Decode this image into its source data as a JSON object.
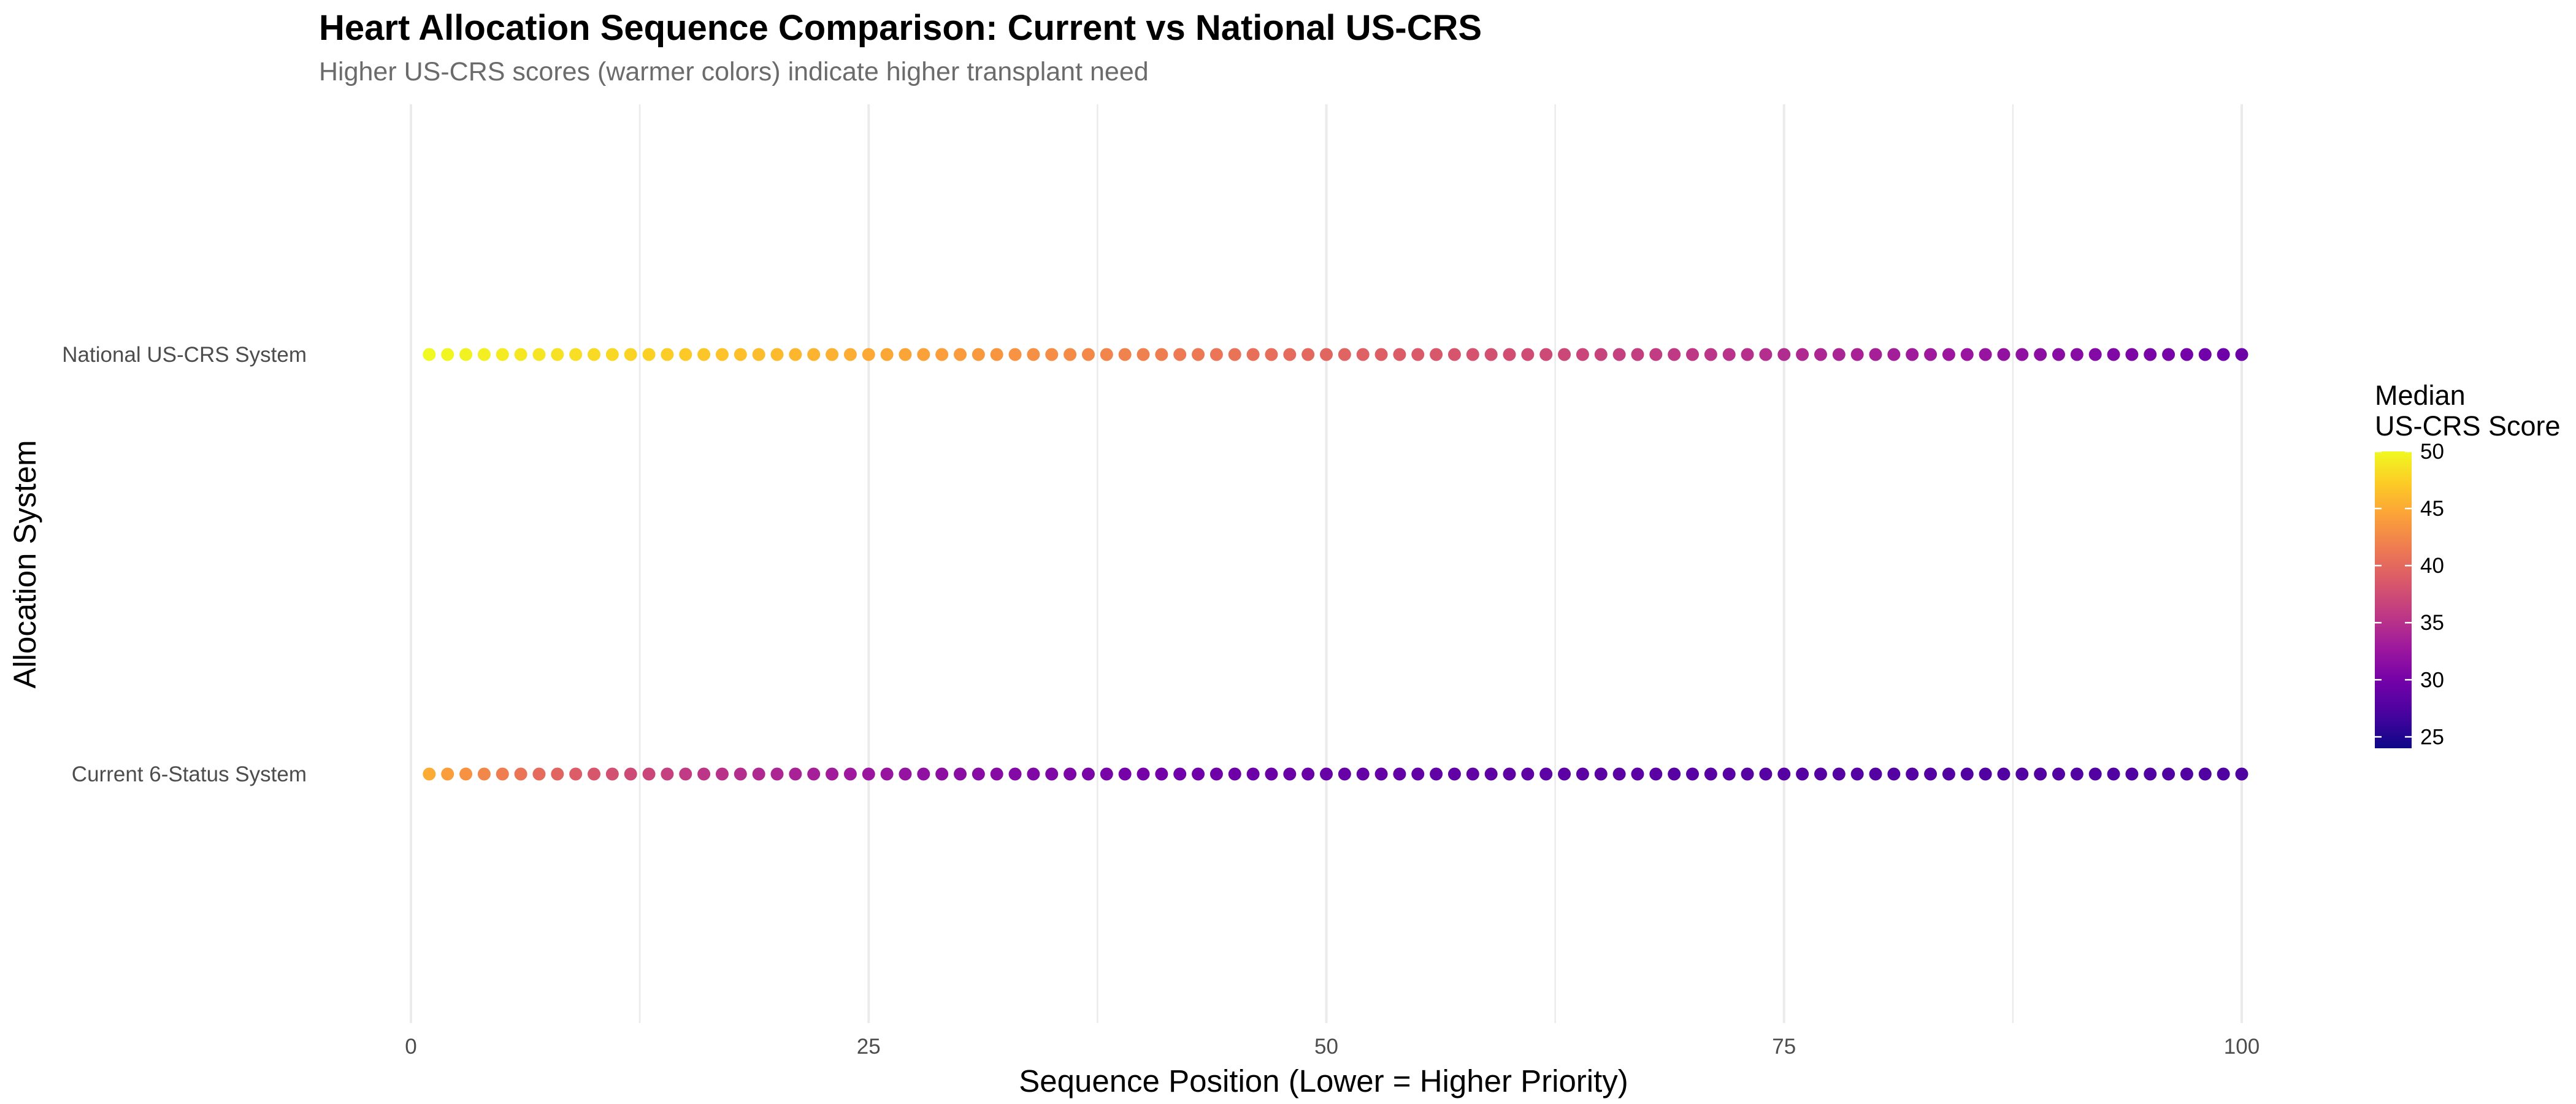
{
  "chart_data": {
    "type": "scatter",
    "title": "Heart Allocation Sequence Comparison: Current vs National US-CRS",
    "subtitle": "Higher US-CRS scores (warmer colors) indicate higher transplant need",
    "xlabel": "Sequence Position (Lower = Higher Priority)",
    "ylabel": "Allocation System",
    "xlim": [
      0,
      100
    ],
    "x_ticks": [
      "0",
      "25",
      "50",
      "75",
      "100"
    ],
    "categories": [
      "National US-CRS System",
      "Current 6-Status System"
    ],
    "grid": "vertical",
    "legend": {
      "position": "right",
      "title": [
        "Median",
        "US-CRS Score"
      ],
      "colormap": "plasma",
      "range": [
        24,
        50
      ],
      "ticks": [
        "50",
        "45",
        "40",
        "35",
        "30",
        "25"
      ]
    },
    "series": [
      {
        "name": "National US-CRS System",
        "x": [
          1,
          2,
          3,
          4,
          5,
          6,
          7,
          8,
          9,
          10,
          11,
          12,
          13,
          14,
          15,
          16,
          17,
          18,
          19,
          20,
          21,
          22,
          23,
          24,
          25,
          26,
          27,
          28,
          29,
          30,
          31,
          32,
          33,
          34,
          35,
          36,
          37,
          38,
          39,
          40,
          41,
          42,
          43,
          44,
          45,
          46,
          47,
          48,
          49,
          50,
          51,
          52,
          53,
          54,
          55,
          56,
          57,
          58,
          59,
          60,
          61,
          62,
          63,
          64,
          65,
          66,
          67,
          68,
          69,
          70,
          71,
          72,
          73,
          74,
          75,
          76,
          77,
          78,
          79,
          80,
          81,
          82,
          83,
          84,
          85,
          86,
          87,
          88,
          89,
          90,
          91,
          92,
          93,
          94,
          95,
          96,
          97,
          98,
          99,
          100
        ],
        "color_values": [
          50.0,
          49.79,
          49.58,
          49.37,
          49.16,
          48.95,
          48.75,
          48.54,
          48.33,
          48.12,
          47.91,
          47.7,
          47.49,
          47.28,
          47.07,
          46.86,
          46.65,
          46.44,
          46.24,
          46.03,
          45.82,
          45.61,
          45.4,
          45.19,
          44.98,
          44.77,
          44.56,
          44.35,
          44.14,
          43.93,
          43.73,
          43.52,
          43.31,
          43.1,
          42.89,
          42.68,
          42.47,
          42.26,
          42.05,
          41.84,
          41.63,
          41.42,
          41.22,
          41.01,
          40.8,
          40.59,
          40.38,
          40.17,
          39.96,
          39.75,
          39.54,
          39.33,
          39.12,
          38.91,
          38.71,
          38.5,
          38.29,
          38.08,
          37.87,
          37.66,
          37.45,
          37.24,
          37.03,
          36.82,
          36.61,
          36.4,
          36.2,
          35.99,
          35.78,
          35.57,
          35.36,
          35.15,
          34.94,
          34.73,
          34.52,
          34.31,
          34.1,
          33.89,
          33.69,
          33.48,
          33.27,
          33.06,
          32.85,
          32.64,
          32.43,
          32.22,
          32.01,
          31.8,
          31.59,
          31.38,
          31.18,
          30.97,
          30.76,
          30.55,
          30.34,
          30.13,
          29.92,
          29.71,
          29.5,
          29.3
        ]
      },
      {
        "name": "Current 6-Status System",
        "x": [
          1,
          2,
          3,
          4,
          5,
          6,
          7,
          8,
          9,
          10,
          11,
          12,
          13,
          14,
          15,
          16,
          17,
          18,
          19,
          20,
          21,
          22,
          23,
          24,
          25,
          26,
          27,
          28,
          29,
          30,
          31,
          32,
          33,
          34,
          35,
          36,
          37,
          38,
          39,
          40,
          41,
          42,
          43,
          44,
          45,
          46,
          47,
          48,
          49,
          50,
          51,
          52,
          53,
          54,
          55,
          56,
          57,
          58,
          59,
          60,
          61,
          62,
          63,
          64,
          65,
          66,
          67,
          68,
          69,
          70,
          71,
          72,
          73,
          74,
          75,
          76,
          77,
          78,
          79,
          80,
          81,
          82,
          83,
          84,
          85,
          86,
          87,
          88,
          89,
          90,
          91,
          92,
          93,
          94,
          95,
          96,
          97,
          98,
          99,
          100
        ],
        "color_values": [
          45.0,
          44.1,
          43.24,
          42.43,
          41.66,
          40.94,
          40.25,
          39.6,
          38.98,
          38.39,
          37.84,
          37.31,
          36.82,
          36.35,
          35.9,
          35.48,
          35.08,
          34.71,
          34.35,
          34.01,
          33.69,
          33.38,
          33.1,
          32.82,
          32.56,
          32.32,
          32.09,
          31.86,
          31.66,
          31.46,
          31.27,
          31.09,
          30.92,
          30.76,
          30.61,
          30.47,
          30.33,
          30.2,
          30.08,
          29.96,
          29.84,
          29.74,
          29.64,
          29.54,
          29.45,
          29.36,
          29.28,
          29.2,
          29.13,
          29.05,
          28.98,
          28.92,
          28.86,
          28.8,
          28.74,
          28.69,
          28.63,
          28.58,
          28.53,
          28.49,
          28.44,
          28.4,
          28.36,
          28.32,
          28.28,
          28.24,
          28.21,
          28.17,
          28.14,
          28.11,
          28.08,
          28.05,
          28.02,
          27.99,
          27.97,
          27.94,
          27.92,
          27.89,
          27.87,
          27.85,
          27.82,
          27.8,
          27.78,
          27.76,
          27.74,
          27.72,
          27.71,
          27.69,
          27.67,
          27.65,
          27.64,
          27.62,
          27.61,
          27.59,
          27.58,
          27.56,
          27.55,
          27.54,
          27.52,
          27.51
        ]
      }
    ],
    "colors": {
      "grid": "#ebebeb",
      "plasma_stops": [
        "#0d0887",
        "#46039f",
        "#7201a8",
        "#9c179e",
        "#bd3786",
        "#d8576b",
        "#ed7953",
        "#fb9f3a",
        "#fdca26",
        "#f0f921"
      ]
    }
  }
}
